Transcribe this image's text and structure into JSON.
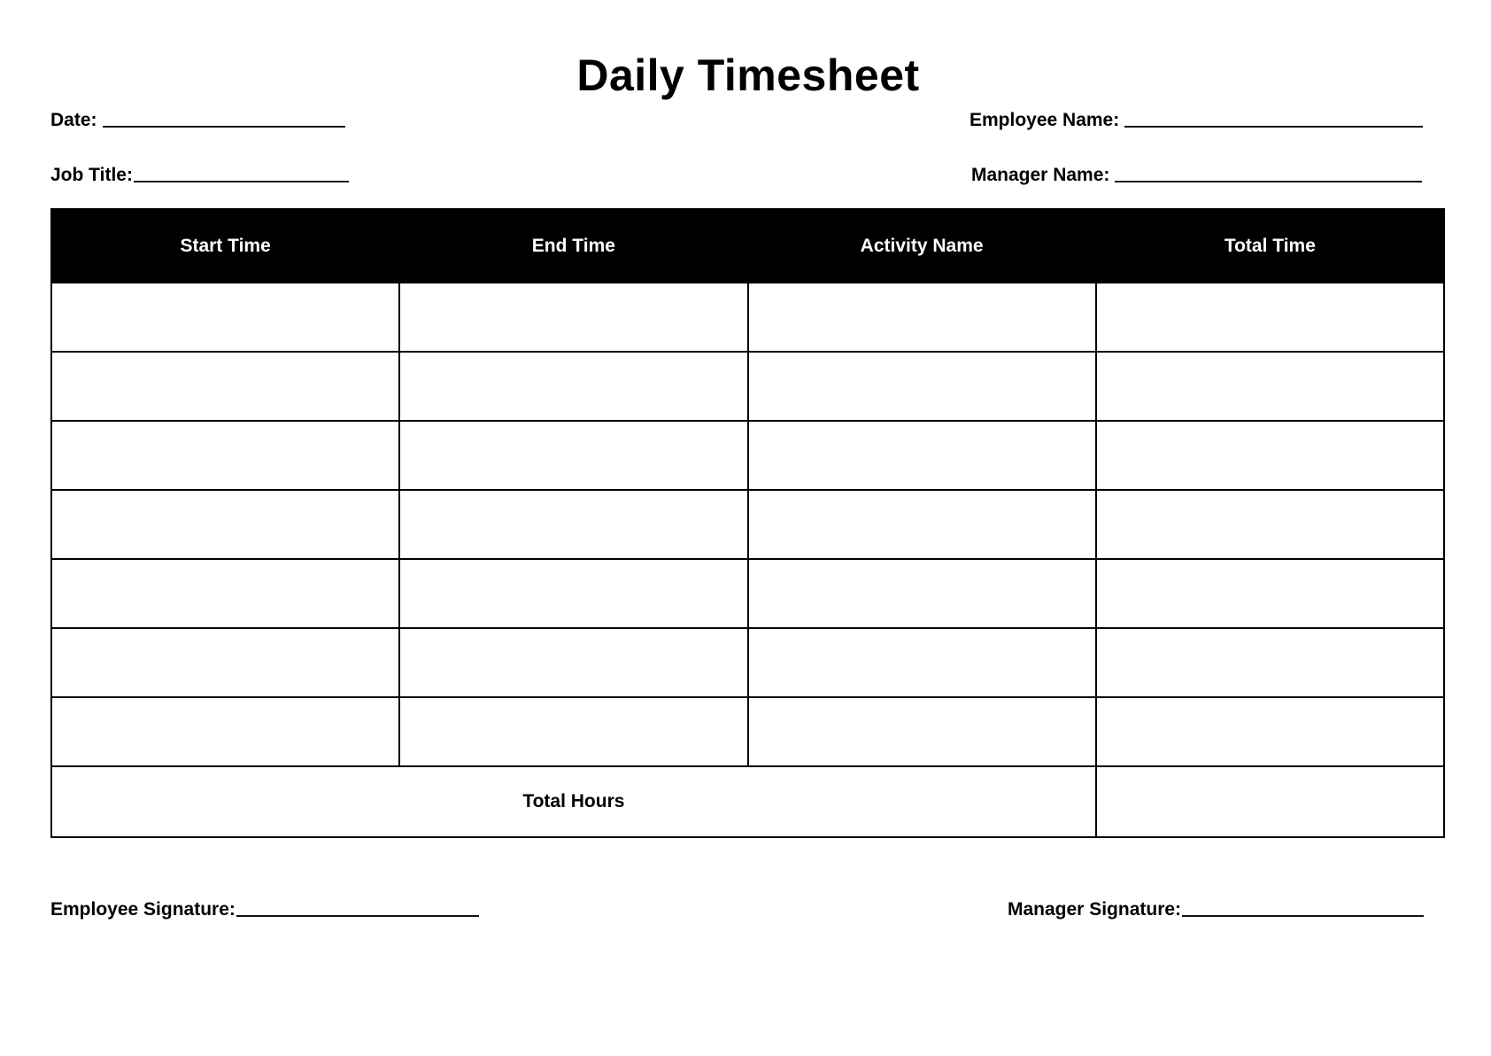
{
  "title": "Daily Timesheet",
  "fields": {
    "date_label": "Date:",
    "job_title_label": "Job Title:",
    "employee_name_label": "Employee Name:",
    "manager_name_label": "Manager Name:"
  },
  "table": {
    "columns": [
      "Start Time",
      "End Time",
      "Activity Name",
      "Total Time"
    ],
    "rows": [
      [
        "",
        "",
        "",
        ""
      ],
      [
        "",
        "",
        "",
        ""
      ],
      [
        "",
        "",
        "",
        ""
      ],
      [
        "",
        "",
        "",
        ""
      ],
      [
        "",
        "",
        "",
        ""
      ],
      [
        "",
        "",
        "",
        ""
      ],
      [
        "",
        "",
        "",
        ""
      ]
    ],
    "total_label": "Total Hours",
    "total_value": ""
  },
  "signatures": {
    "employee_label": "Employee Signature:",
    "manager_label": "Manager Signature:"
  }
}
